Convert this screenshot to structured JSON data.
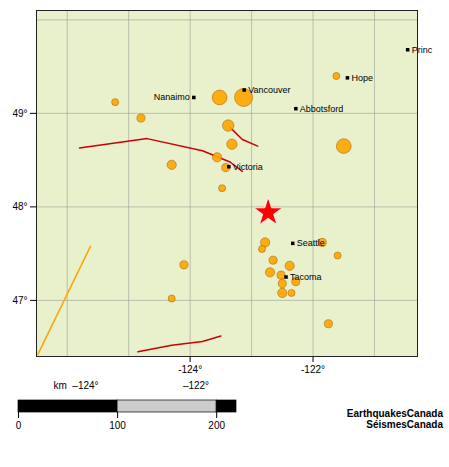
{
  "chart_data": [
    {
      "type": "map",
      "xlim": [
        -126.5,
        -120.3
      ],
      "ylim": [
        46.4,
        50.1
      ],
      "xticks": [
        {
          "value": -124,
          "label": "-124°"
        },
        {
          "value": -122,
          "label": "-122°"
        }
      ],
      "yticks": [
        {
          "value": 47,
          "label": "47°"
        },
        {
          "value": 48,
          "label": "48°"
        },
        {
          "value": 49,
          "label": "49°"
        }
      ],
      "grid": true,
      "grid_lons": [
        -126,
        -125,
        -124,
        -123,
        -122,
        -121,
        -120
      ],
      "grid_lats": [
        47,
        48,
        49,
        50
      ],
      "grid_color": "#888888",
      "land_color": "#e8f0cc",
      "border_color": "#222222",
      "lines": [
        {
          "color": "#cc0000",
          "x": [
            -125.8,
            -124.7,
            -123.8,
            -123.35,
            -123.15
          ],
          "y": [
            48.63,
            48.73,
            48.6,
            48.48,
            48.38
          ]
        },
        {
          "color": "#cc0000",
          "x": [
            -123.35,
            -123.15,
            -122.9
          ],
          "y": [
            48.85,
            48.72,
            48.65
          ]
        },
        {
          "color": "#cc0000",
          "x": [
            -124.85,
            -124.3,
            -123.8,
            -123.5
          ],
          "y": [
            46.45,
            46.52,
            46.56,
            46.62
          ]
        },
        {
          "color": "#FFA500",
          "x": [
            -126.48,
            -125.62
          ],
          "y": [
            46.42,
            47.58
          ]
        }
      ],
      "earthquakes": {
        "x": [
          -123.52,
          -123.13,
          -123.38,
          -123.32,
          -123.56,
          -123.42,
          -123.48,
          -124.3,
          -124.8,
          -121.5,
          -121.62,
          -122.78,
          -122.65,
          -122.52,
          -122.38,
          -122.28,
          -122.5,
          -122.7,
          -122.83,
          -122.5,
          -122.35,
          -121.85,
          -121.6,
          -124.1,
          -124.3,
          -121.75,
          -125.22
        ],
        "y": [
          49.17,
          49.17,
          48.87,
          48.67,
          48.53,
          48.42,
          48.2,
          48.45,
          48.95,
          48.65,
          49.4,
          47.62,
          47.43,
          47.27,
          47.37,
          47.2,
          47.18,
          47.3,
          47.55,
          47.08,
          47.08,
          47.62,
          47.48,
          47.38,
          47.02,
          46.75,
          49.12
        ],
        "mag": [
          5.8,
          6.1,
          5.5,
          5.4,
          5.3,
          5.2,
          5.1,
          5.3,
          5.2,
          5.8,
          5.1,
          5.3,
          5.2,
          5.2,
          5.3,
          5.2,
          5.2,
          5.3,
          5.1,
          5.3,
          5.1,
          5.2,
          5.1,
          5.2,
          5.1,
          5.2,
          5.1
        ],
        "color": "#FFA500",
        "edge_color": "#b06800"
      },
      "cities": {
        "labels": [
          "Vancouver",
          "Nanaimo",
          "Victoria",
          "Abbotsford",
          "Hope",
          "Princ",
          "Seattle",
          "Tacoma"
        ],
        "x": [
          -123.12,
          -123.94,
          -123.37,
          -122.28,
          -121.44,
          -120.46,
          -122.33,
          -122.44
        ],
        "y": [
          49.25,
          49.17,
          48.43,
          49.05,
          49.38,
          49.68,
          47.61,
          47.25
        ],
        "label_side": [
          "left",
          "right",
          "left",
          "left",
          "left",
          "left",
          "left",
          "left"
        ],
        "color": "black",
        "marker": "square"
      },
      "star": {
        "x": -122.73,
        "y": 47.94,
        "color": "red",
        "marker": "star"
      },
      "annotations": [
        "km  –124°",
        "–122°"
      ],
      "caption": "EarthquakesCanada\nSéismesCanada"
    },
    {
      "type": "scale_bar",
      "xlim": [
        0,
        220
      ],
      "xticks": [
        0,
        100,
        200
      ],
      "bins": [
        0,
        100,
        200,
        220
      ],
      "colors": [
        "black",
        "#cccccc",
        "black"
      ]
    }
  ]
}
